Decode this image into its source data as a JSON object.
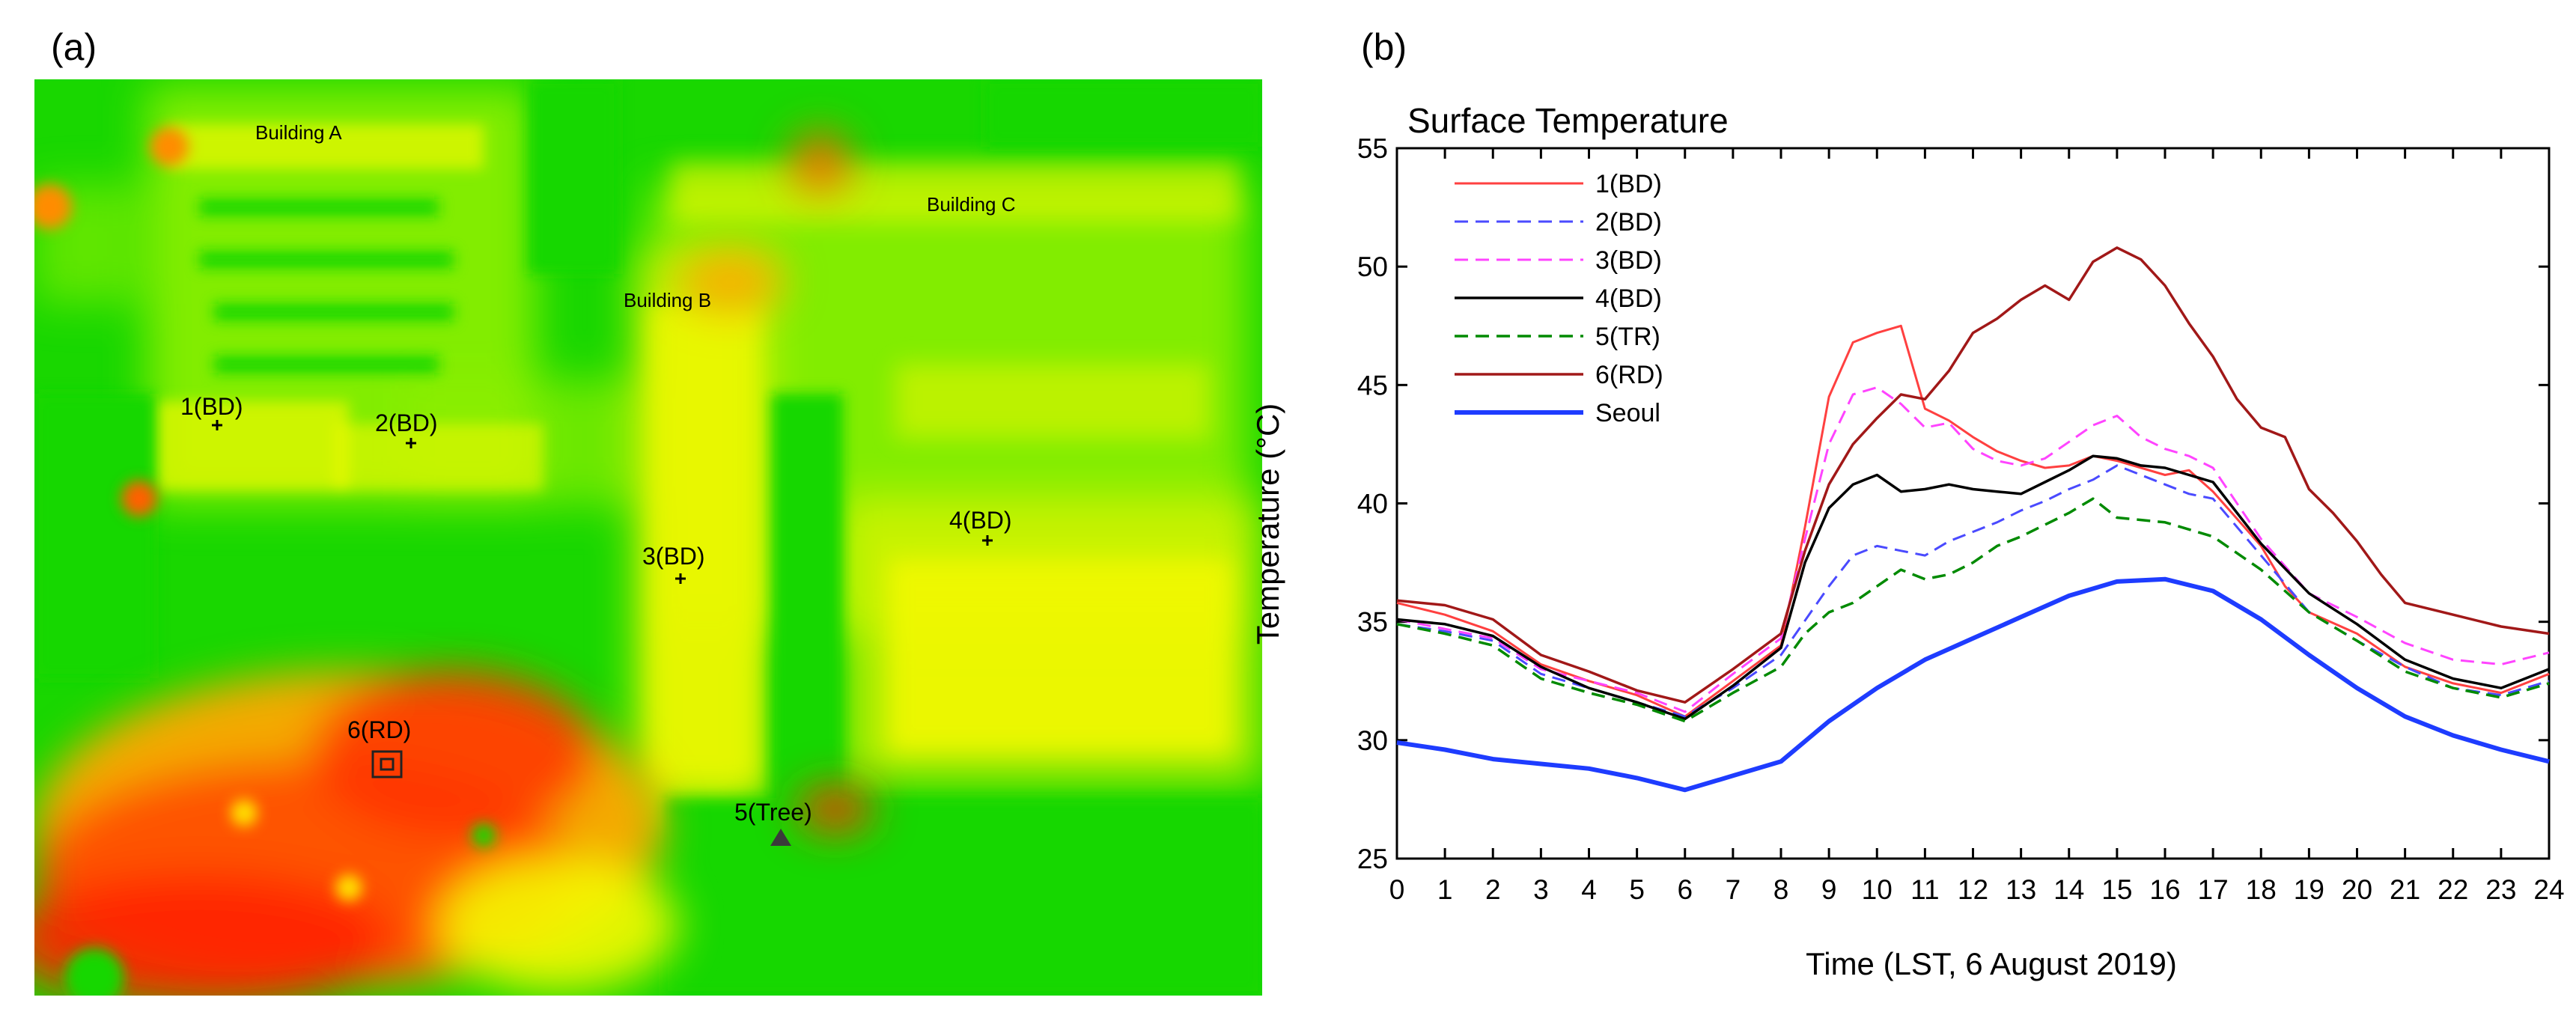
{
  "panels": {
    "a_label": "(a)",
    "b_label": "(b)"
  },
  "map": {
    "buildings": [
      {
        "id": "building-a",
        "label": "Building A"
      },
      {
        "id": "building-b",
        "label": "Building B"
      },
      {
        "id": "building-c",
        "label": "Building C"
      }
    ],
    "points": [
      {
        "id": "point-1",
        "label": "1(BD)",
        "marker": "plus"
      },
      {
        "id": "point-2",
        "label": "2(BD)",
        "marker": "plus"
      },
      {
        "id": "point-3",
        "label": "3(BD)",
        "marker": "plus"
      },
      {
        "id": "point-4",
        "label": "4(BD)",
        "marker": "plus"
      },
      {
        "id": "point-5",
        "label": "5(Tree)",
        "marker": "triangle"
      },
      {
        "id": "point-6",
        "label": "6(RD)",
        "marker": "square"
      }
    ],
    "colors": {
      "green": "#19d700",
      "light_green": "#8ef000",
      "yellow": "#f4f800",
      "orange": "#fb9d00",
      "red": "#ff2a00",
      "dark_red": "#ea1a00"
    }
  },
  "chart_data": {
    "type": "line",
    "title": "Surface Temperature",
    "xlabel": "Time (LST, 6 August 2019)",
    "ylabel": "Temperature (°C)",
    "xlim": [
      0,
      24
    ],
    "ylim": [
      25,
      55
    ],
    "xticks": [
      "0",
      "1",
      "2",
      "3",
      "4",
      "5",
      "6",
      "7",
      "8",
      "9",
      "10",
      "11",
      "12",
      "13",
      "14",
      "15",
      "16",
      "17",
      "18",
      "19",
      "20",
      "21",
      "22",
      "23",
      "24"
    ],
    "yticks": [
      "25",
      "30",
      "35",
      "40",
      "45",
      "50",
      "55"
    ],
    "legend_position": "top-left",
    "series": [
      {
        "name": "1(BD)",
        "color": "#ff4040",
        "dash": "solid",
        "width": 3,
        "points": [
          [
            0,
            35.8
          ],
          [
            1,
            35.3
          ],
          [
            2,
            34.6
          ],
          [
            3,
            33.2
          ],
          [
            4,
            32.5
          ],
          [
            5,
            31.9
          ],
          [
            6,
            31.0
          ],
          [
            7,
            32.5
          ],
          [
            8,
            34.0
          ],
          [
            8.5,
            39
          ],
          [
            9,
            44.5
          ],
          [
            9.5,
            46.8
          ],
          [
            10,
            47.2
          ],
          [
            10.5,
            47.5
          ],
          [
            11,
            44
          ],
          [
            11.5,
            43.5
          ],
          [
            12,
            42.8
          ],
          [
            12.5,
            42.2
          ],
          [
            13,
            41.8
          ],
          [
            13.5,
            41.5
          ],
          [
            14,
            41.6
          ],
          [
            14.5,
            42
          ],
          [
            15,
            41.8
          ],
          [
            15.5,
            41.5
          ],
          [
            16,
            41.2
          ],
          [
            16.5,
            41.4
          ],
          [
            17,
            40.5
          ],
          [
            18,
            38.2
          ],
          [
            18.5,
            36.5
          ],
          [
            19,
            35.4
          ],
          [
            20,
            34.5
          ],
          [
            21,
            33.1
          ],
          [
            22,
            32.4
          ],
          [
            23,
            32.0
          ],
          [
            24,
            32.8
          ]
        ]
      },
      {
        "name": "2(BD)",
        "color": "#4a4aff",
        "dash": "dashed",
        "width": 3,
        "points": [
          [
            0,
            34.9
          ],
          [
            1,
            34.6
          ],
          [
            2,
            34.2
          ],
          [
            3,
            32.8
          ],
          [
            4,
            32.2
          ],
          [
            5,
            31.6
          ],
          [
            6,
            31.0
          ],
          [
            7,
            32.2
          ],
          [
            8,
            33.6
          ],
          [
            9,
            36.5
          ],
          [
            9.5,
            37.8
          ],
          [
            10,
            38.2
          ],
          [
            10.5,
            38
          ],
          [
            11,
            37.8
          ],
          [
            11.5,
            38.4
          ],
          [
            12,
            38.8
          ],
          [
            12.5,
            39.2
          ],
          [
            13,
            39.7
          ],
          [
            13.5,
            40.1
          ],
          [
            14,
            40.6
          ],
          [
            14.5,
            41
          ],
          [
            15,
            41.6
          ],
          [
            15.5,
            41.2
          ],
          [
            16,
            40.8
          ],
          [
            16.5,
            40.4
          ],
          [
            17,
            40.2
          ],
          [
            18,
            37.8
          ],
          [
            19,
            35.4
          ],
          [
            20,
            34.2
          ],
          [
            21,
            33.1
          ],
          [
            22,
            32.2
          ],
          [
            23,
            31.9
          ],
          [
            24,
            32.5
          ]
        ]
      },
      {
        "name": "3(BD)",
        "color": "#ff44ff",
        "dash": "dashed",
        "width": 3,
        "points": [
          [
            0,
            35.1
          ],
          [
            1,
            34.7
          ],
          [
            2,
            34.3
          ],
          [
            3,
            33.0
          ],
          [
            4,
            32.5
          ],
          [
            5,
            32.0
          ],
          [
            6,
            31.2
          ],
          [
            7,
            32.8
          ],
          [
            8,
            34.3
          ],
          [
            8.5,
            38.5
          ],
          [
            9,
            42.5
          ],
          [
            9.5,
            44.6
          ],
          [
            10,
            44.9
          ],
          [
            10.5,
            44.2
          ],
          [
            11,
            43.2
          ],
          [
            11.5,
            43.4
          ],
          [
            12,
            42.3
          ],
          [
            12.5,
            41.8
          ],
          [
            13,
            41.6
          ],
          [
            13.5,
            41.9
          ],
          [
            14,
            42.6
          ],
          [
            14.5,
            43.3
          ],
          [
            15,
            43.7
          ],
          [
            15.5,
            42.8
          ],
          [
            16,
            42.3
          ],
          [
            16.5,
            42
          ],
          [
            17,
            41.5
          ],
          [
            18,
            38.5
          ],
          [
            19,
            36.2
          ],
          [
            20,
            35.2
          ],
          [
            21,
            34.1
          ],
          [
            22,
            33.4
          ],
          [
            23,
            33.2
          ],
          [
            24,
            33.7
          ]
        ]
      },
      {
        "name": "4(BD)",
        "color": "#000000",
        "dash": "solid",
        "width": 3.5,
        "points": [
          [
            0,
            35.1
          ],
          [
            1,
            34.9
          ],
          [
            2,
            34.4
          ],
          [
            3,
            33.1
          ],
          [
            4,
            32.2
          ],
          [
            5,
            31.6
          ],
          [
            6,
            30.9
          ],
          [
            7,
            32.3
          ],
          [
            8,
            33.9
          ],
          [
            8.5,
            37.5
          ],
          [
            9,
            39.8
          ],
          [
            9.5,
            40.8
          ],
          [
            10,
            41.2
          ],
          [
            10.5,
            40.5
          ],
          [
            11,
            40.6
          ],
          [
            11.5,
            40.8
          ],
          [
            12,
            40.6
          ],
          [
            12.5,
            40.5
          ],
          [
            13,
            40.4
          ],
          [
            13.5,
            40.9
          ],
          [
            14,
            41.4
          ],
          [
            14.5,
            42
          ],
          [
            15,
            41.9
          ],
          [
            15.5,
            41.6
          ],
          [
            16,
            41.5
          ],
          [
            16.5,
            41.2
          ],
          [
            17,
            40.9
          ],
          [
            18,
            38.3
          ],
          [
            19,
            36.2
          ],
          [
            20,
            34.9
          ],
          [
            21,
            33.4
          ],
          [
            22,
            32.6
          ],
          [
            23,
            32.2
          ],
          [
            24,
            33.0
          ]
        ]
      },
      {
        "name": "5(TR)",
        "color": "#008a00",
        "dash": "dashed",
        "width": 3.5,
        "points": [
          [
            0,
            34.9
          ],
          [
            1,
            34.5
          ],
          [
            2,
            34.0
          ],
          [
            3,
            32.6
          ],
          [
            4,
            32.0
          ],
          [
            5,
            31.5
          ],
          [
            6,
            30.8
          ],
          [
            7,
            32.0
          ],
          [
            8,
            33.1
          ],
          [
            8.5,
            34.5
          ],
          [
            9,
            35.4
          ],
          [
            9.5,
            35.8
          ],
          [
            10,
            36.5
          ],
          [
            10.5,
            37.2
          ],
          [
            11,
            36.8
          ],
          [
            11.5,
            37
          ],
          [
            12,
            37.5
          ],
          [
            12.5,
            38.2
          ],
          [
            13,
            38.6
          ],
          [
            13.5,
            39.1
          ],
          [
            14,
            39.6
          ],
          [
            14.5,
            40.2
          ],
          [
            15,
            39.4
          ],
          [
            15.5,
            39.3
          ],
          [
            16,
            39.2
          ],
          [
            16.5,
            38.9
          ],
          [
            17,
            38.6
          ],
          [
            18,
            37.2
          ],
          [
            19,
            35.4
          ],
          [
            20,
            34.2
          ],
          [
            21,
            32.9
          ],
          [
            22,
            32.2
          ],
          [
            23,
            31.8
          ],
          [
            24,
            32.4
          ]
        ]
      },
      {
        "name": "6(RD)",
        "color": "#a11818",
        "dash": "solid",
        "width": 3.5,
        "points": [
          [
            0,
            35.9
          ],
          [
            1,
            35.7
          ],
          [
            2,
            35.1
          ],
          [
            3,
            33.6
          ],
          [
            4,
            32.9
          ],
          [
            5,
            32.1
          ],
          [
            6,
            31.6
          ],
          [
            7,
            33.0
          ],
          [
            8,
            34.5
          ],
          [
            8.5,
            38
          ],
          [
            9,
            40.8
          ],
          [
            9.5,
            42.5
          ],
          [
            10,
            43.6
          ],
          [
            10.5,
            44.6
          ],
          [
            11,
            44.4
          ],
          [
            11.5,
            45.6
          ],
          [
            12,
            47.2
          ],
          [
            12.5,
            47.8
          ],
          [
            13,
            48.6
          ],
          [
            13.5,
            49.2
          ],
          [
            14,
            48.6
          ],
          [
            14.5,
            50.2
          ],
          [
            15,
            50.8
          ],
          [
            15.5,
            50.3
          ],
          [
            16,
            49.2
          ],
          [
            16.5,
            47.6
          ],
          [
            17,
            46.2
          ],
          [
            17.5,
            44.4
          ],
          [
            18,
            43.2
          ],
          [
            18.5,
            42.8
          ],
          [
            19,
            40.6
          ],
          [
            19.5,
            39.6
          ],
          [
            20,
            38.4
          ],
          [
            20.5,
            37
          ],
          [
            21,
            35.8
          ],
          [
            22,
            35.3
          ],
          [
            23,
            34.8
          ],
          [
            24,
            34.5
          ]
        ]
      },
      {
        "name": "Seoul",
        "color": "#1e3cff",
        "dash": "solid",
        "width": 6,
        "points": [
          [
            0,
            29.9
          ],
          [
            1,
            29.6
          ],
          [
            2,
            29.2
          ],
          [
            3,
            29.0
          ],
          [
            4,
            28.8
          ],
          [
            5,
            28.4
          ],
          [
            6,
            27.9
          ],
          [
            7,
            28.5
          ],
          [
            8,
            29.1
          ],
          [
            9,
            30.8
          ],
          [
            10,
            32.2
          ],
          [
            11,
            33.4
          ],
          [
            12,
            34.3
          ],
          [
            13,
            35.2
          ],
          [
            14,
            36.1
          ],
          [
            15,
            36.7
          ],
          [
            16,
            36.8
          ],
          [
            17,
            36.3
          ],
          [
            18,
            35.1
          ],
          [
            19,
            33.6
          ],
          [
            20,
            32.2
          ],
          [
            21,
            31.0
          ],
          [
            22,
            30.2
          ],
          [
            23,
            29.6
          ],
          [
            24,
            29.1
          ]
        ]
      }
    ]
  }
}
